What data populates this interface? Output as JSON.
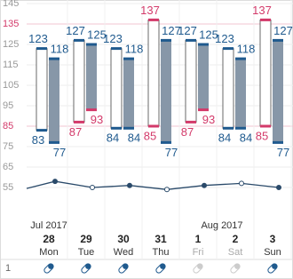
{
  "y_axis": {
    "ylim": [
      55,
      145
    ],
    "yticks": [
      145,
      135,
      125,
      115,
      105,
      95,
      85,
      75,
      65,
      55
    ]
  },
  "thresholds": {
    "systolic": 135,
    "diastolic": 85
  },
  "months": [
    "Jul 2017",
    "Aug 2017"
  ],
  "medication_row_label": "1",
  "days": [
    {
      "date": "28",
      "weekday": "Mon",
      "readings": [
        {
          "systolic": 123,
          "diastolic": 83
        },
        {
          "systolic": 118,
          "diastolic": 77
        }
      ],
      "pulse": 58,
      "medication_taken": true
    },
    {
      "date": "29",
      "weekday": "Tue",
      "readings": [
        {
          "systolic": 127,
          "diastolic": 87
        },
        {
          "systolic": 125,
          "diastolic": 93
        }
      ],
      "pulse": 55,
      "medication_taken": true
    },
    {
      "date": "30",
      "weekday": "Wed",
      "readings": [
        {
          "systolic": 123,
          "diastolic": 84
        },
        {
          "systolic": 118,
          "diastolic": 84
        }
      ],
      "pulse": 56,
      "medication_taken": true
    },
    {
      "date": "31",
      "weekday": "Thu",
      "readings": [
        {
          "systolic": 137,
          "diastolic": 85
        },
        {
          "systolic": 127,
          "diastolic": 77
        }
      ],
      "pulse": 54,
      "medication_taken": true
    },
    {
      "date": "1",
      "weekday": "Fri",
      "readings": [
        {
          "systolic": 127,
          "diastolic": 87
        },
        {
          "systolic": 125,
          "diastolic": 93
        }
      ],
      "pulse": 56,
      "medication_taken": false
    },
    {
      "date": "2",
      "weekday": "Sat",
      "readings": [
        {
          "systolic": 123,
          "diastolic": 84
        },
        {
          "systolic": 118,
          "diastolic": 84
        }
      ],
      "pulse": 57,
      "medication_taken": false
    },
    {
      "date": "3",
      "weekday": "Sun",
      "readings": [
        {
          "systolic": 137,
          "diastolic": 85
        },
        {
          "systolic": 127,
          "diastolic": 77
        }
      ],
      "pulse": 55,
      "medication_taken": true
    }
  ]
}
